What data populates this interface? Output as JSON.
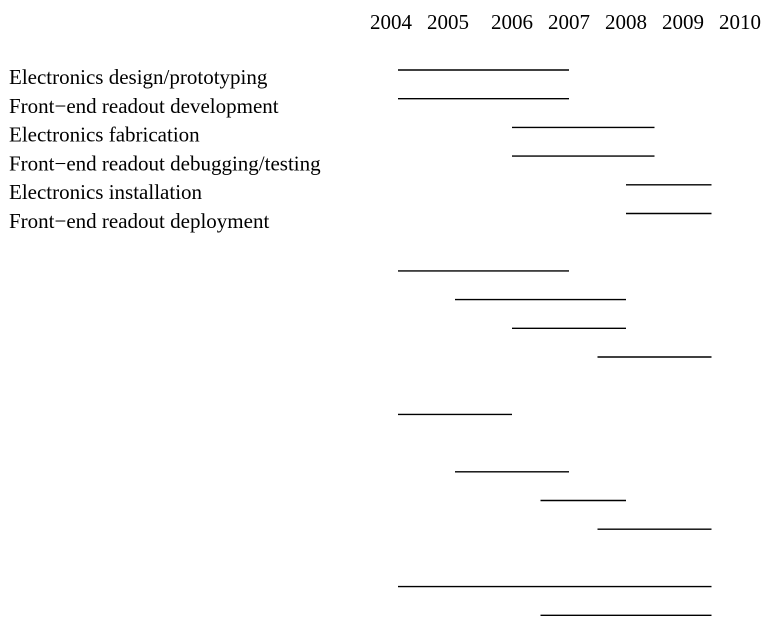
{
  "chart_data": {
    "type": "gantt",
    "title": "",
    "xlabel": "",
    "ylabel": "",
    "grid": false,
    "legend": "none",
    "x_ticks": [
      "2004",
      "2005",
      "2006",
      "2007",
      "2008",
      "2009",
      "2010"
    ],
    "xlim": [
      2004,
      2010
    ],
    "categories": [
      "Electronics design/prototyping",
      "Front−end readout development",
      "Electronics fabrication",
      "Front−end readout debugging/testing",
      "Electronics installation",
      "Front−end readout deployment"
    ],
    "bars": [
      {
        "row": 0,
        "start": 2004.0,
        "end": 2007.0
      },
      {
        "row": 1,
        "start": 2004.0,
        "end": 2007.0
      },
      {
        "row": 2,
        "start": 2006.0,
        "end": 2008.5
      },
      {
        "row": 3,
        "start": 2006.0,
        "end": 2008.5
      },
      {
        "row": 4,
        "start": 2008.0,
        "end": 2009.5
      },
      {
        "row": 5,
        "start": 2008.0,
        "end": 2009.5
      },
      {
        "row": 7,
        "start": 2004.0,
        "end": 2007.0
      },
      {
        "row": 8,
        "start": 2005.0,
        "end": 2008.0
      },
      {
        "row": 9,
        "start": 2006.0,
        "end": 2008.0
      },
      {
        "row": 10,
        "start": 2007.5,
        "end": 2009.5
      },
      {
        "row": 12,
        "start": 2004.0,
        "end": 2006.0
      },
      {
        "row": 14,
        "start": 2005.0,
        "end": 2007.0
      },
      {
        "row": 15,
        "start": 2006.5,
        "end": 2008.0
      },
      {
        "row": 16,
        "start": 2007.5,
        "end": 2009.5
      },
      {
        "row": 18,
        "start": 2004.0,
        "end": 2009.5
      },
      {
        "row": 19,
        "start": 2006.5,
        "end": 2009.5
      }
    ],
    "colors": {
      "line": "#000000",
      "text": "#000000",
      "background": "#ffffff"
    }
  }
}
